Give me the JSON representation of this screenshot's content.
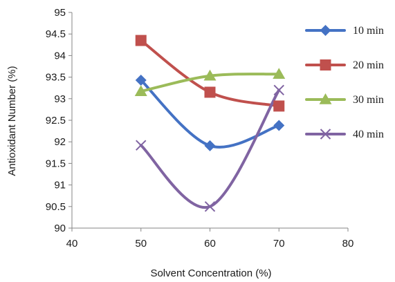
{
  "chart_data": {
    "type": "line",
    "xlabel": "Solvent Concentration (%)",
    "ylabel": "Antioxidant Number  (%)",
    "xlim": [
      40,
      80
    ],
    "ylim": [
      90,
      95
    ],
    "x_ticks": [
      "40",
      "50",
      "60",
      "70",
      "80"
    ],
    "y_ticks": [
      "90",
      "90.5",
      "91",
      "91.5",
      "92",
      "92.5",
      "93",
      "93.5",
      "94",
      "94.5",
      "95"
    ],
    "x": [
      50,
      60,
      70
    ],
    "grid": false,
    "legend_position": "right",
    "smooth": true,
    "series": [
      {
        "name": "10 min",
        "values": [
          93.43,
          91.91,
          92.38
        ],
        "color": "#4472C4",
        "marker": "diamond"
      },
      {
        "name": "20 min",
        "values": [
          94.35,
          93.15,
          92.83
        ],
        "color": "#C0504D",
        "marker": "square"
      },
      {
        "name": "30 min",
        "values": [
          93.17,
          93.53,
          93.57
        ],
        "color": "#9BBB59",
        "marker": "triangle"
      },
      {
        "name": "40 min",
        "values": [
          91.92,
          90.5,
          93.2
        ],
        "color": "#8064A2",
        "marker": "x"
      }
    ]
  }
}
